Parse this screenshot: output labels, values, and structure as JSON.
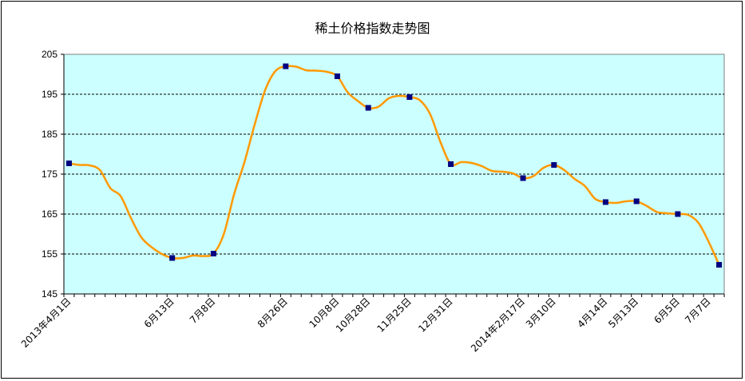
{
  "chart_data": {
    "type": "line",
    "title": "稀土价格指数走势图",
    "xlabel": "",
    "ylabel": "",
    "ylim": [
      145,
      205
    ],
    "yticks": [
      145,
      155,
      165,
      175,
      185,
      195,
      205
    ],
    "grid": true,
    "legend": "none",
    "colors": {
      "line": "#FF9900",
      "marker": "#000080",
      "plot_bg": "#CCFFFF"
    },
    "x_labels": [
      "2013年4月1日",
      "6月13日",
      "7月8日",
      "8月26日",
      "10月8日",
      "10月28日",
      "11月25日",
      "12月31日",
      "2014年2月17日",
      "3月10日",
      "4月14日",
      "5月13日",
      "6月5日",
      "7月7日"
    ],
    "x_label_index": [
      0,
      10,
      14,
      21,
      26,
      29,
      33,
      37,
      44,
      47,
      52,
      55,
      59,
      62
    ],
    "values": [
      177.7,
      177.3,
      177.2,
      176.0,
      171.5,
      169.5,
      164.0,
      159.2,
      156.7,
      155.0,
      154.0,
      154.0,
      154.6,
      154.5,
      155.1,
      160.0,
      170.0,
      178.0,
      187.5,
      196.0,
      200.8,
      202.0,
      201.9,
      201.0,
      200.9,
      200.6,
      199.5,
      195.5,
      193.3,
      191.6,
      191.9,
      194.0,
      194.6,
      194.3,
      193.5,
      190.0,
      183.0,
      177.5,
      178.0,
      177.8,
      177.0,
      175.8,
      175.6,
      175.2,
      174.0,
      174.5,
      176.6,
      177.3,
      176.0,
      173.8,
      172.0,
      168.8,
      168.0,
      167.8,
      168.2,
      168.2,
      167.0,
      165.5,
      165.2,
      165.0,
      164.8,
      162.8,
      158.0,
      152.3
    ],
    "marker_index": [
      0,
      10,
      14,
      21,
      26,
      29,
      33,
      37,
      44,
      47,
      52,
      55,
      59,
      63
    ]
  }
}
